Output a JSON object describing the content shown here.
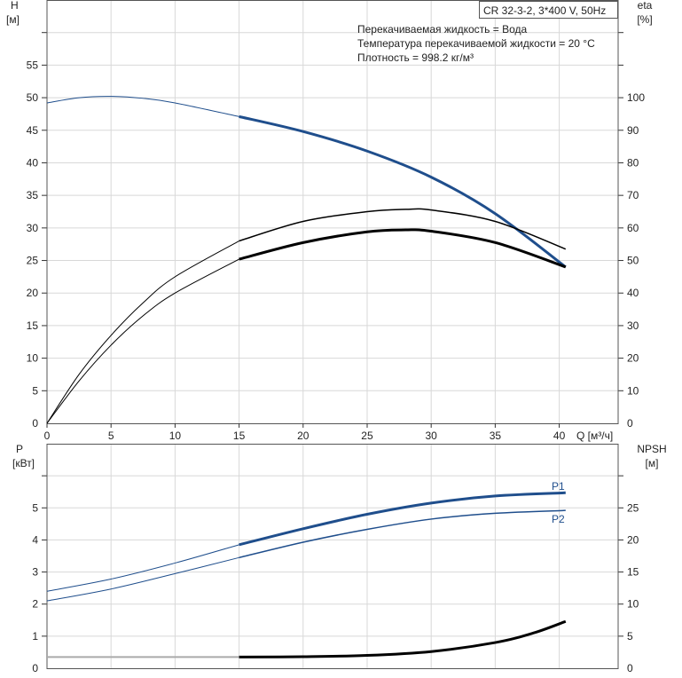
{
  "chart_data": [
    {
      "type": "line",
      "title": "CR 32-3-2, 3*400 V, 50Hz",
      "annotations": [
        "Перекачиваемая жидкость = Вода",
        "Температура перекачиваемой жидкости = 20 °C",
        "Плотность = 998.2 кг/м³"
      ],
      "xlabel": "Q [м³/ч]",
      "ylabel": "H",
      "ylabel_unit": "[м]",
      "y2label": "eta",
      "y2label_unit": "[%]",
      "xlim": [
        0,
        44.6
      ],
      "ylim": [
        0,
        65
      ],
      "y2lim": [
        0,
        130
      ],
      "xticks": [
        0,
        5,
        10,
        15,
        20,
        25,
        30,
        35,
        40
      ],
      "yticks": [
        0,
        5,
        10,
        15,
        20,
        25,
        30,
        35,
        40,
        45,
        50,
        55
      ],
      "y2ticks": [
        0,
        10,
        20,
        30,
        40,
        50,
        60,
        70,
        80,
        90,
        100
      ],
      "grid": true,
      "series": [
        {
          "name": "H",
          "axis": "y",
          "color": "#1f4e8c",
          "x": [
            0,
            2.5,
            5,
            7.5,
            10,
            15,
            20,
            25,
            30,
            35,
            40.5
          ],
          "y": [
            49.2,
            50,
            50.2,
            49.9,
            49.2,
            47.1,
            44.8,
            41.8,
            37.8,
            32.2,
            24
          ]
        },
        {
          "name": "eta",
          "axis": "y2",
          "color": "#000000",
          "x": [
            0,
            2.5,
            5,
            7.5,
            10,
            15,
            20,
            25,
            28,
            30,
            35,
            40.5
          ],
          "y": [
            0,
            15,
            27,
            37,
            45,
            56,
            62,
            65,
            65.7,
            65.5,
            62,
            53.5
          ]
        },
        {
          "name": "eta2",
          "axis": "y2",
          "color": "#000000",
          "x": [
            0,
            2.5,
            5,
            7.5,
            10,
            15,
            20,
            25,
            28,
            30,
            35,
            40.5
          ],
          "y": [
            0,
            13,
            24,
            33,
            40,
            50.4,
            55.5,
            58.8,
            59.4,
            59,
            55.5,
            48
          ]
        }
      ]
    },
    {
      "type": "line",
      "xlabel": "Q [м³/ч]",
      "ylabel": "P",
      "ylabel_unit": "[кВт]",
      "y2label": "NPSH",
      "y2label_unit": "[м]",
      "xlim": [
        0,
        44.6
      ],
      "ylim": [
        0,
        7
      ],
      "y2lim": [
        0,
        35
      ],
      "yticks": [
        0,
        1,
        2,
        3,
        4,
        5
      ],
      "y2ticks": [
        0,
        5,
        10,
        15,
        20,
        25
      ],
      "grid": true,
      "series": [
        {
          "name": "P1",
          "axis": "y",
          "color": "#1f4e8c",
          "x": [
            0,
            5,
            10,
            15,
            20,
            25,
            30,
            35,
            40.5
          ],
          "y": [
            2.4,
            2.78,
            3.28,
            3.85,
            4.35,
            4.8,
            5.15,
            5.37,
            5.47
          ]
        },
        {
          "name": "P2",
          "axis": "y",
          "color": "#1f4e8c",
          "x": [
            0,
            5,
            10,
            15,
            20,
            25,
            30,
            35,
            40.5
          ],
          "y": [
            2.1,
            2.47,
            2.95,
            3.45,
            3.93,
            4.33,
            4.65,
            4.83,
            4.92
          ]
        },
        {
          "name": "NPSH",
          "axis": "y2",
          "color": "#000000",
          "x": [
            0,
            15,
            20,
            25,
            30,
            35,
            38,
            40.5
          ],
          "y": [
            1.75,
            1.75,
            1.8,
            2.0,
            2.6,
            4.0,
            5.5,
            7.3
          ]
        }
      ]
    }
  ]
}
